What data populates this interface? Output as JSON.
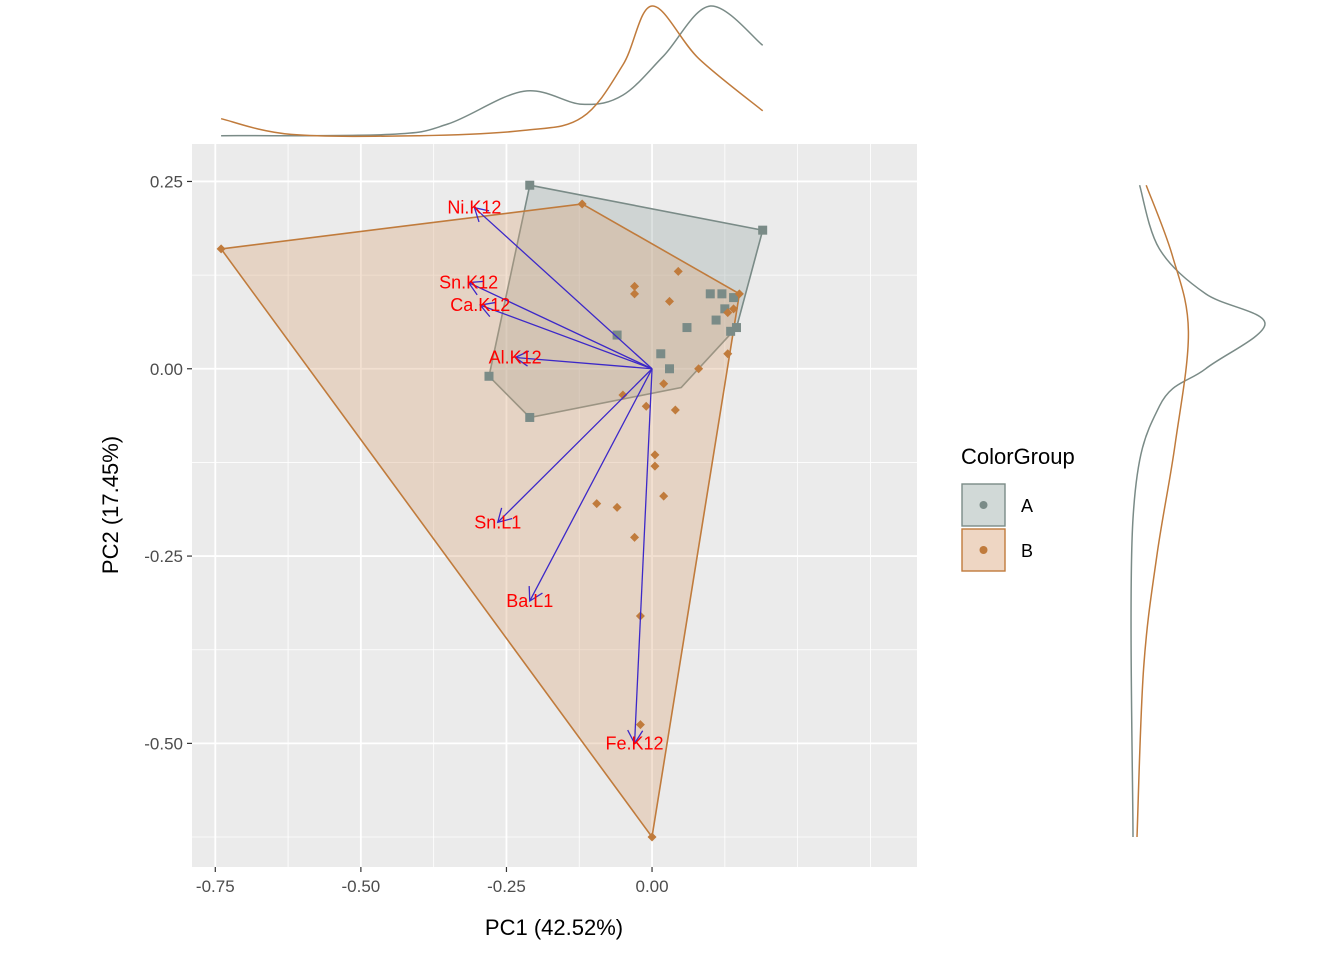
{
  "chart_data": {
    "type": "scatter",
    "subtype": "pca-biplot-with-marginal-densities",
    "xlabel": "PC1 (42.52%)",
    "ylabel": "PC2 (17.45%)",
    "xlim": [
      -0.79,
      0.455
    ],
    "ylim": [
      -0.665,
      0.3
    ],
    "x_ticks": [
      {
        "value": -0.75,
        "label": "-0.75"
      },
      {
        "value": -0.5,
        "label": "-0.50"
      },
      {
        "value": -0.25,
        "label": "-0.25"
      },
      {
        "value": 0.0,
        "label": "0.00"
      }
    ],
    "y_ticks": [
      {
        "value": 0.25,
        "label": "0.25"
      },
      {
        "value": 0.0,
        "label": "0.00"
      },
      {
        "value": -0.25,
        "label": "-0.25"
      },
      {
        "value": -0.5,
        "label": "-0.50"
      }
    ],
    "grid": true,
    "panel_background": "#ebebeb",
    "legend": {
      "title": "ColorGroup",
      "position": "right",
      "entries": [
        "A",
        "B"
      ]
    },
    "series": [
      {
        "name": "A",
        "color": "#7a8b87",
        "fill": "#9aaaa6",
        "marker": "square",
        "points": [
          [
            -0.21,
            0.245
          ],
          [
            0.19,
            0.185
          ],
          [
            -0.06,
            0.045
          ],
          [
            -0.28,
            -0.01
          ],
          [
            -0.21,
            -0.065
          ],
          [
            0.015,
            0.02
          ],
          [
            0.06,
            0.055
          ],
          [
            0.1,
            0.1
          ],
          [
            0.125,
            0.08
          ],
          [
            0.14,
            0.095
          ],
          [
            0.145,
            0.055
          ],
          [
            0.11,
            0.065
          ],
          [
            0.135,
            0.05
          ],
          [
            0.03,
            0.0
          ],
          [
            0.12,
            0.1
          ]
        ],
        "hull": [
          [
            -0.21,
            0.245
          ],
          [
            0.19,
            0.185
          ],
          [
            0.145,
            0.055
          ],
          [
            0.05,
            -0.025
          ],
          [
            -0.21,
            -0.065
          ],
          [
            -0.28,
            -0.01
          ]
        ]
      },
      {
        "name": "B",
        "color": "#c07b3c",
        "fill": "#d9a57a",
        "marker": "diamond",
        "points": [
          [
            -0.74,
            0.16
          ],
          [
            -0.12,
            0.22
          ],
          [
            0.0,
            -0.625
          ],
          [
            0.15,
            0.1
          ],
          [
            -0.03,
            0.11
          ],
          [
            -0.03,
            0.1
          ],
          [
            0.045,
            0.13
          ],
          [
            0.03,
            0.09
          ],
          [
            0.14,
            0.08
          ],
          [
            0.13,
            0.02
          ],
          [
            0.08,
            0.0
          ],
          [
            -0.05,
            -0.035
          ],
          [
            0.02,
            -0.02
          ],
          [
            -0.01,
            -0.05
          ],
          [
            0.04,
            -0.055
          ],
          [
            0.005,
            -0.115
          ],
          [
            0.005,
            -0.13
          ],
          [
            0.02,
            -0.17
          ],
          [
            -0.095,
            -0.18
          ],
          [
            -0.06,
            -0.185
          ],
          [
            -0.03,
            -0.225
          ],
          [
            -0.02,
            -0.33
          ],
          [
            -0.02,
            -0.475
          ],
          [
            0.13,
            0.075
          ]
        ],
        "hull": [
          [
            -0.74,
            0.16
          ],
          [
            -0.12,
            0.22
          ],
          [
            0.15,
            0.1
          ],
          [
            0.0,
            -0.625
          ]
        ]
      }
    ],
    "loadings": {
      "arrow_color": "#3c28c8",
      "label_color": "#ff0000",
      "origin": [
        0.0,
        0.0
      ],
      "vectors": [
        {
          "name": "Ni.K12",
          "x": -0.305,
          "y": 0.215
        },
        {
          "name": "Sn.K12",
          "x": -0.315,
          "y": 0.115
        },
        {
          "name": "Ca.K12",
          "x": -0.295,
          "y": 0.085
        },
        {
          "name": "Al.K12",
          "x": -0.235,
          "y": 0.015
        },
        {
          "name": "Sn.L1",
          "x": -0.265,
          "y": -0.205
        },
        {
          "name": "Ba.L1",
          "x": -0.21,
          "y": -0.31
        },
        {
          "name": "Fe.K12",
          "x": -0.03,
          "y": -0.5
        }
      ]
    },
    "marginal_density_top": {
      "axis": "PC1",
      "A": [
        [
          -0.74,
          0.01
        ],
        [
          -0.45,
          0.02
        ],
        [
          -0.35,
          0.1
        ],
        [
          -0.22,
          0.35
        ],
        [
          -0.12,
          0.25
        ],
        [
          -0.05,
          0.32
        ],
        [
          0.02,
          0.62
        ],
        [
          0.1,
          1.0
        ],
        [
          0.19,
          0.7
        ]
      ],
      "B": [
        [
          -0.74,
          0.14
        ],
        [
          -0.62,
          0.02
        ],
        [
          -0.4,
          0.01
        ],
        [
          -0.22,
          0.05
        ],
        [
          -0.12,
          0.15
        ],
        [
          -0.05,
          0.55
        ],
        [
          0.0,
          1.0
        ],
        [
          0.08,
          0.6
        ],
        [
          0.19,
          0.2
        ]
      ]
    },
    "marginal_density_right": {
      "axis": "PC2",
      "A": [
        [
          0.245,
          0.05
        ],
        [
          0.16,
          0.2
        ],
        [
          0.1,
          0.55
        ],
        [
          0.06,
          1.0
        ],
        [
          0.0,
          0.55
        ],
        [
          -0.05,
          0.2
        ],
        [
          -0.2,
          0.0
        ],
        [
          -0.625,
          0.0
        ]
      ],
      "B": [
        [
          0.245,
          0.1
        ],
        [
          0.15,
          0.3
        ],
        [
          0.05,
          0.42
        ],
        [
          -0.1,
          0.32
        ],
        [
          -0.25,
          0.18
        ],
        [
          -0.4,
          0.08
        ],
        [
          -0.625,
          0.03
        ]
      ]
    }
  }
}
